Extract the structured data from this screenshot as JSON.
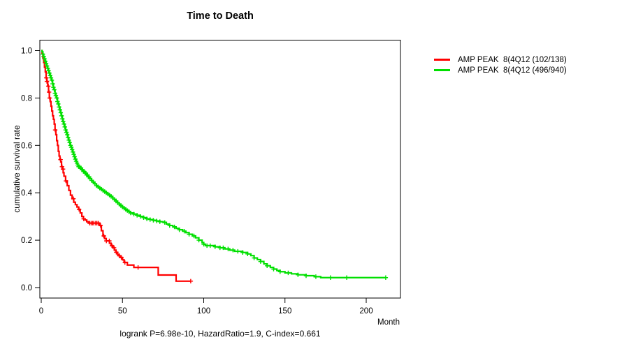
{
  "chart_data": {
    "type": "line",
    "subtype": "kaplan-meier-step",
    "title": "Time to Death",
    "xlabel": "Month",
    "ylabel": "cumulative survival rate",
    "annotation": "logrank P=6.98e-10, HazardRatio=1.9, C-index=0.661",
    "xlim": [
      0,
      221
    ],
    "ylim": [
      0,
      1.0
    ],
    "xticks": [
      0,
      50,
      100,
      150,
      200
    ],
    "yticks": [
      0,
      0.2,
      0.4,
      0.6,
      0.8,
      1
    ],
    "ytick_labels": [
      "0.0",
      "0.2",
      "0.4",
      "0.6",
      "0.8",
      "1.0"
    ],
    "grid": false,
    "legend_position": "right-outside",
    "axis_color": "#000000",
    "background_color": "#ffffff",
    "series": [
      {
        "name": "AMP PEAK  8(4Q12 (102/138)",
        "color": "#FF0000",
        "events": 102,
        "n": 138,
        "points": [
          [
            0,
            1.0
          ],
          [
            0.5,
            0.99
          ],
          [
            1,
            0.97
          ],
          [
            1.5,
            0.95
          ],
          [
            2,
            0.93
          ],
          [
            2.5,
            0.91
          ],
          [
            3,
            0.885
          ],
          [
            3.5,
            0.87
          ],
          [
            4,
            0.85
          ],
          [
            4.5,
            0.825
          ],
          [
            5,
            0.8
          ],
          [
            5.5,
            0.785
          ],
          [
            6,
            0.765
          ],
          [
            6.5,
            0.745
          ],
          [
            7,
            0.725
          ],
          [
            7.5,
            0.71
          ],
          [
            8,
            0.69
          ],
          [
            8.5,
            0.665
          ],
          [
            9,
            0.645
          ],
          [
            9.5,
            0.62
          ],
          [
            10,
            0.6
          ],
          [
            10.5,
            0.575
          ],
          [
            11,
            0.555
          ],
          [
            11.5,
            0.54
          ],
          [
            12,
            0.53
          ],
          [
            12.5,
            0.51
          ],
          [
            13,
            0.5
          ],
          [
            13.5,
            0.485
          ],
          [
            14,
            0.47
          ],
          [
            15,
            0.45
          ],
          [
            16,
            0.43
          ],
          [
            17,
            0.41
          ],
          [
            18,
            0.39
          ],
          [
            19,
            0.375
          ],
          [
            20,
            0.36
          ],
          [
            21,
            0.35
          ],
          [
            22,
            0.34
          ],
          [
            23,
            0.33
          ],
          [
            24,
            0.315
          ],
          [
            25,
            0.3
          ],
          [
            26,
            0.29
          ],
          [
            27,
            0.285
          ],
          [
            28,
            0.278
          ],
          [
            29,
            0.272
          ],
          [
            36,
            0.262
          ],
          [
            37,
            0.24
          ],
          [
            38,
            0.218
          ],
          [
            39,
            0.207
          ],
          [
            40,
            0.197
          ],
          [
            42,
            0.187
          ],
          [
            43,
            0.177
          ],
          [
            44,
            0.168
          ],
          [
            45,
            0.158
          ],
          [
            46,
            0.149
          ],
          [
            47,
            0.14
          ],
          [
            48,
            0.134
          ],
          [
            49,
            0.127
          ],
          [
            50,
            0.117
          ],
          [
            51,
            0.106
          ],
          [
            53,
            0.095
          ],
          [
            57,
            0.085
          ],
          [
            72,
            0.053
          ],
          [
            83,
            0.027
          ],
          [
            92,
            0.027
          ]
        ],
        "censor_times": [
          3.1,
          3.5,
          4.4,
          4.8,
          5.2,
          8.6,
          11.9,
          12.8,
          13.4,
          15.2,
          19.8,
          23.3,
          26.1,
          29.8,
          30.7,
          31.6,
          32.4,
          33.5,
          34.3,
          35.2,
          36.5,
          38.5,
          40.1,
          41.9,
          43.5,
          44.8,
          46.2,
          48,
          49.3,
          51.5,
          59.6,
          92
        ]
      },
      {
        "name": "AMP PEAK  8(4Q12 (496/940)",
        "color": "#00DF00",
        "events": 496,
        "n": 940,
        "points": [
          [
            0,
            1.0
          ],
          [
            0.5,
            0.995
          ],
          [
            1,
            0.985
          ],
          [
            1.5,
            0.975
          ],
          [
            2,
            0.965
          ],
          [
            2.5,
            0.955
          ],
          [
            3,
            0.945
          ],
          [
            3.5,
            0.935
          ],
          [
            4,
            0.925
          ],
          [
            4.5,
            0.915
          ],
          [
            5,
            0.905
          ],
          [
            5.5,
            0.895
          ],
          [
            6,
            0.885
          ],
          [
            6.5,
            0.875
          ],
          [
            7,
            0.86
          ],
          [
            7.5,
            0.845
          ],
          [
            8,
            0.835
          ],
          [
            8.5,
            0.82
          ],
          [
            9,
            0.81
          ],
          [
            9.5,
            0.8
          ],
          [
            10,
            0.785
          ],
          [
            10.5,
            0.775
          ],
          [
            11,
            0.762
          ],
          [
            11.5,
            0.75
          ],
          [
            12,
            0.738
          ],
          [
            12.5,
            0.725
          ],
          [
            13,
            0.712
          ],
          [
            13.5,
            0.7
          ],
          [
            14,
            0.69
          ],
          [
            14.5,
            0.678
          ],
          [
            15,
            0.665
          ],
          [
            15.5,
            0.655
          ],
          [
            16,
            0.645
          ],
          [
            16.5,
            0.633
          ],
          [
            17,
            0.622
          ],
          [
            17.5,
            0.612
          ],
          [
            18,
            0.6
          ],
          [
            18.5,
            0.592
          ],
          [
            19,
            0.582
          ],
          [
            19.5,
            0.572
          ],
          [
            20,
            0.562
          ],
          [
            20.5,
            0.552
          ],
          [
            21,
            0.542
          ],
          [
            21.5,
            0.533
          ],
          [
            22,
            0.525
          ],
          [
            22.5,
            0.517
          ],
          [
            23,
            0.51
          ],
          [
            24,
            0.505
          ],
          [
            25,
            0.497
          ],
          [
            26,
            0.49
          ],
          [
            27,
            0.483
          ],
          [
            28,
            0.475
          ],
          [
            29,
            0.467
          ],
          [
            30,
            0.46
          ],
          [
            31,
            0.452
          ],
          [
            32,
            0.445
          ],
          [
            33,
            0.438
          ],
          [
            34,
            0.43
          ],
          [
            35,
            0.425
          ],
          [
            36,
            0.42
          ],
          [
            37,
            0.415
          ],
          [
            38,
            0.41
          ],
          [
            39,
            0.405
          ],
          [
            40,
            0.4
          ],
          [
            41,
            0.395
          ],
          [
            42,
            0.39
          ],
          [
            43,
            0.385
          ],
          [
            44,
            0.378
          ],
          [
            45,
            0.372
          ],
          [
            46,
            0.365
          ],
          [
            47,
            0.358
          ],
          [
            48,
            0.352
          ],
          [
            49,
            0.346
          ],
          [
            50,
            0.34
          ],
          [
            51,
            0.335
          ],
          [
            52,
            0.33
          ],
          [
            53,
            0.325
          ],
          [
            54,
            0.32
          ],
          [
            55,
            0.315
          ],
          [
            57,
            0.31
          ],
          [
            59,
            0.305
          ],
          [
            61,
            0.3
          ],
          [
            63,
            0.295
          ],
          [
            65,
            0.29
          ],
          [
            67,
            0.287
          ],
          [
            69,
            0.284
          ],
          [
            71,
            0.281
          ],
          [
            73,
            0.278
          ],
          [
            75,
            0.275
          ],
          [
            77,
            0.268
          ],
          [
            79,
            0.262
          ],
          [
            81,
            0.256
          ],
          [
            83,
            0.25
          ],
          [
            85,
            0.244
          ],
          [
            87,
            0.238
          ],
          [
            89,
            0.232
          ],
          [
            91,
            0.225
          ],
          [
            93,
            0.218
          ],
          [
            95,
            0.21
          ],
          [
            97,
            0.2
          ],
          [
            99,
            0.19
          ],
          [
            100,
            0.183
          ],
          [
            101,
            0.177
          ],
          [
            107,
            0.172
          ],
          [
            110,
            0.168
          ],
          [
            113,
            0.163
          ],
          [
            116,
            0.158
          ],
          [
            119,
            0.153
          ],
          [
            124,
            0.148
          ],
          [
            127,
            0.142
          ],
          [
            129,
            0.135
          ],
          [
            131,
            0.125
          ],
          [
            133,
            0.118
          ],
          [
            135,
            0.11
          ],
          [
            137,
            0.1
          ],
          [
            139,
            0.092
          ],
          [
            141,
            0.085
          ],
          [
            143,
            0.078
          ],
          [
            145,
            0.072
          ],
          [
            147,
            0.067
          ],
          [
            150,
            0.062
          ],
          [
            154,
            0.058
          ],
          [
            158,
            0.054
          ],
          [
            163,
            0.05
          ],
          [
            168,
            0.046
          ],
          [
            172,
            0.042
          ],
          [
            212,
            0.042
          ]
        ],
        "censor_times": [
          1,
          1.5,
          2,
          2.5,
          3,
          3.5,
          4,
          4.5,
          5,
          5.5,
          6,
          6.5,
          7,
          7.5,
          8,
          8.5,
          9,
          9.5,
          10,
          10.5,
          11,
          11.5,
          12,
          12.5,
          13,
          13.5,
          14,
          14.5,
          15,
          15.5,
          16,
          16.5,
          17,
          17.5,
          18,
          18.5,
          19,
          19.5,
          20,
          20.5,
          21,
          21.5,
          22,
          22.5,
          23,
          23.5,
          24,
          24.5,
          25,
          25.5,
          26,
          26.5,
          27,
          27.5,
          28,
          28.5,
          29,
          29.5,
          30,
          31,
          32,
          33,
          34,
          35,
          36,
          37,
          38,
          39,
          40,
          41,
          42,
          43,
          44,
          45,
          46,
          47,
          48,
          49,
          50,
          51,
          52,
          53,
          54,
          55,
          57,
          59,
          61,
          63,
          65,
          67,
          69,
          71,
          73,
          76,
          79,
          82,
          85,
          88,
          91,
          94,
          97,
          100,
          102,
          104,
          107,
          110,
          112,
          115,
          118,
          121,
          124,
          127,
          131,
          135,
          139,
          143,
          147,
          152,
          158,
          163,
          169,
          178,
          188,
          212
        ]
      }
    ]
  }
}
